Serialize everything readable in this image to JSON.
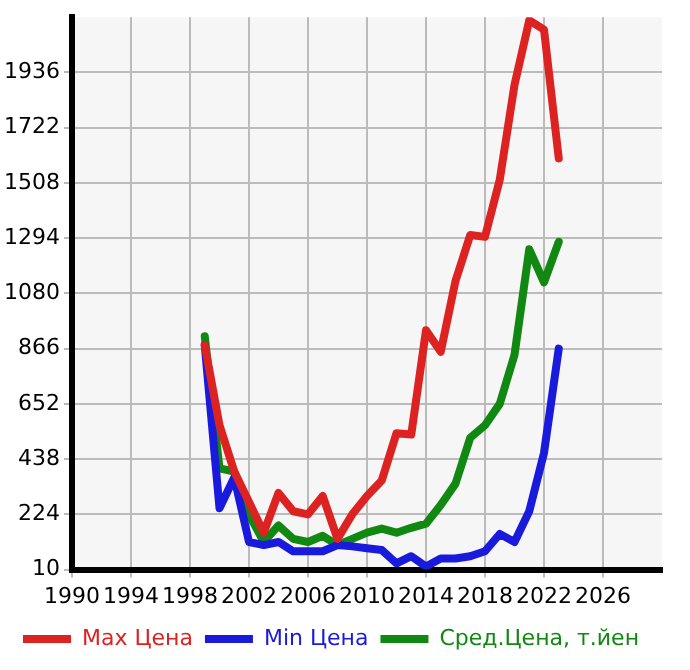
{
  "chart_data": {
    "type": "line",
    "x": [
      1999,
      2000,
      2001,
      2002,
      2003,
      2004,
      2005,
      2006,
      2007,
      2008,
      2009,
      2010,
      2011,
      2012,
      2013,
      2014,
      2015,
      2016,
      2017,
      2018,
      2019,
      2020,
      2021,
      2022,
      2023
    ],
    "series": [
      {
        "name": "Max Цена",
        "color": "#dd2222",
        "values": [
          880,
          569,
          390,
          272,
          153,
          307,
          236,
          224,
          295,
          129,
          224,
          295,
          355,
          538,
          533,
          937,
          854,
          1128,
          1306,
          1299,
          1520,
          1888,
          2138,
          2102,
          1603
        ]
      },
      {
        "name": "Min Цена",
        "color": "#1a1add",
        "values": [
          880,
          248,
          367,
          117,
          105,
          117,
          81,
          81,
          81,
          105,
          100,
          93,
          86,
          34,
          62,
          22,
          53,
          53,
          62,
          81,
          148,
          117,
          236,
          462,
          866
        ]
      },
      {
        "name": "Сред.Цена, т.йен",
        "color": "#118811",
        "values": [
          914,
          402,
          390,
          224,
          117,
          181,
          129,
          117,
          141,
          105,
          129,
          153,
          169,
          153,
          172,
          188,
          260,
          343,
          521,
          569,
          652,
          842,
          1251,
          1123,
          1280
        ]
      }
    ],
    "xlim": [
      1990,
      2030
    ],
    "xticks": [
      1990,
      1994,
      1998,
      2002,
      2006,
      2010,
      2014,
      2018,
      2022,
      2026
    ],
    "ylim": [
      10,
      2150
    ],
    "yticks": [
      10,
      224,
      438,
      652,
      866,
      1080,
      1294,
      1508,
      1722,
      1936
    ],
    "grid": true,
    "legend": "bottom",
    "marker": "none",
    "line_style": "solid"
  }
}
